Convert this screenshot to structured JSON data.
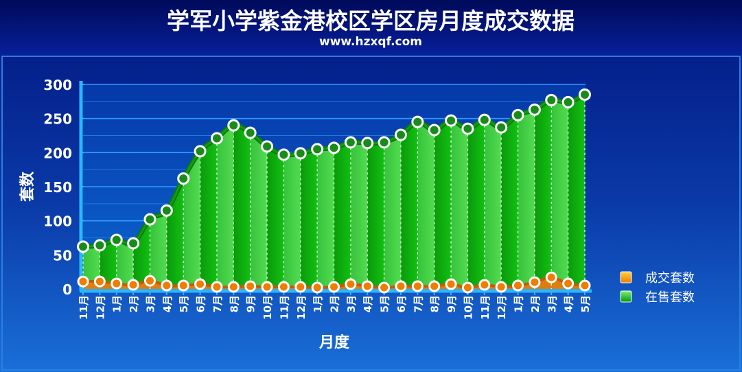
{
  "colors": {
    "header_bg": "#06127a",
    "plot_bg": "#0050c0",
    "sold": "#f07c00",
    "listing": "#00b400",
    "title": "#ffffff"
  },
  "chart_data": {
    "type": "area",
    "title": "学军小学紫金港校区学区房月度成交数据",
    "subtitle": "www.hzxqf.com",
    "xlabel": "月度",
    "ylabel": "套数",
    "ylim": [
      0,
      300
    ],
    "yticks": [
      0,
      50,
      100,
      150,
      200,
      250,
      300
    ],
    "grid": true,
    "legend_position": "right",
    "categories": [
      "11月",
      "12月",
      "1月",
      "2月",
      "3月",
      "4月",
      "5月",
      "6月",
      "7月",
      "8月",
      "9月",
      "10月",
      "11月",
      "12月",
      "1月",
      "2月",
      "3月",
      "4月",
      "5月",
      "6月",
      "7月",
      "8月",
      "9月",
      "10月",
      "11月",
      "12月",
      "1月",
      "2月",
      "3月",
      "4月",
      "5月"
    ],
    "series": [
      {
        "name": "成交套数",
        "color": "#f07c00",
        "values": [
          11,
          11,
          8,
          6,
          12,
          5,
          5,
          7,
          3,
          3,
          4,
          3,
          3,
          3,
          2,
          3,
          7,
          4,
          2,
          4,
          4,
          4,
          7,
          2,
          6,
          3,
          5,
          10,
          17,
          8,
          5
        ]
      },
      {
        "name": "在售套数",
        "color": "#00b400",
        "values": [
          62,
          64,
          72,
          67,
          102,
          115,
          162,
          202,
          221,
          240,
          229,
          209,
          197,
          199,
          205,
          207,
          215,
          214,
          215,
          226,
          245,
          233,
          247,
          235,
          248,
          237,
          255,
          263,
          277,
          274,
          285
        ]
      }
    ]
  }
}
